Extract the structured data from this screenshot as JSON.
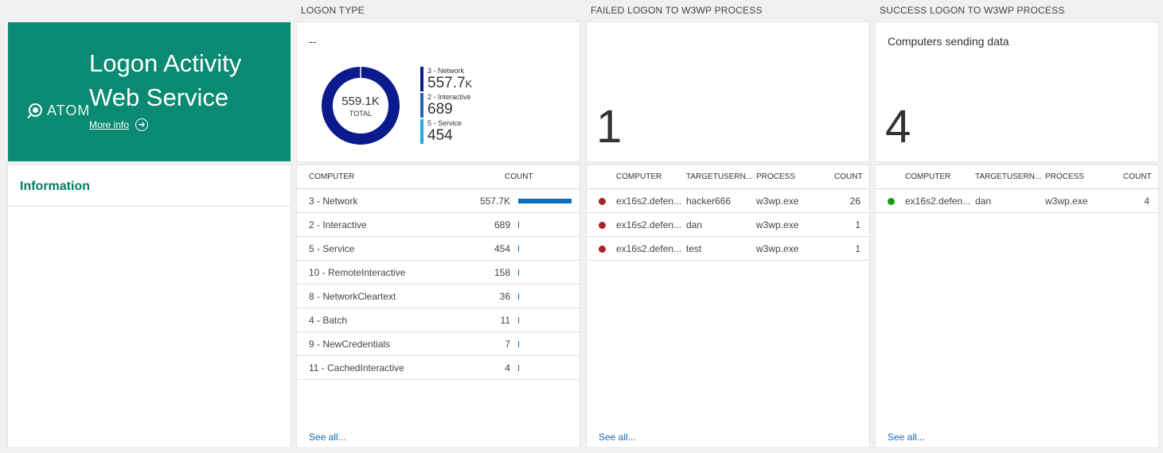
{
  "columns": {
    "logon_type": "LOGON TYPE",
    "failed": "FAILED LOGON TO W3WP PROCESS",
    "success": "SUCCESS LOGON TO W3WP PROCESS"
  },
  "hero": {
    "logo_text": "ATOM",
    "title_line1": "Logon Activity",
    "title_line2": "Web Service",
    "more_info": "More info",
    "bg_color": "#0a8a72"
  },
  "information": {
    "title": "Information"
  },
  "donut": {
    "subtitle": "--",
    "total": "559.1K",
    "total_label": "TOTAL",
    "legend": [
      {
        "label": "3 - Network",
        "value": "557.7",
        "unit": "K",
        "color": "#0b1a8c"
      },
      {
        "label": "2 - Interactive",
        "value": "689",
        "unit": "",
        "color": "#1f63b8"
      },
      {
        "label": "5 - Service",
        "value": "454",
        "unit": "",
        "color": "#2aa6d9"
      }
    ]
  },
  "logon_table": {
    "headers": [
      "COMPUTER",
      "COUNT"
    ],
    "rows": [
      {
        "name": "3 - Network",
        "count": "557.7K",
        "fraction": 1.0
      },
      {
        "name": "2 - Interactive",
        "count": "689",
        "fraction": 0.0012
      },
      {
        "name": "5 - Service",
        "count": "454",
        "fraction": 0.0008
      },
      {
        "name": "10 - RemoteInteractive",
        "count": "158",
        "fraction": 0.0003
      },
      {
        "name": "8 - NetworkCleartext",
        "count": "36",
        "fraction": 0.0001
      },
      {
        "name": "4 - Batch",
        "count": "11",
        "fraction": 0.0
      },
      {
        "name": "9 - NewCredentials",
        "count": "7",
        "fraction": 0.0
      },
      {
        "name": "11 - CachedInteractive",
        "count": "4",
        "fraction": 0.0
      }
    ],
    "see_all": "See all..."
  },
  "failed": {
    "big_number": "1",
    "headers": [
      "COMPUTER",
      "TARGETUSERN...",
      "PROCESS",
      "COUNT"
    ],
    "rows": [
      {
        "computer": "ex16s2.defen...",
        "user": "hacker666",
        "process": "w3wp.exe",
        "count": "26",
        "status_color": "#a4262c"
      },
      {
        "computer": "ex16s2.defen...",
        "user": "dan",
        "process": "w3wp.exe",
        "count": "1",
        "status_color": "#a4262c"
      },
      {
        "computer": "ex16s2.defen...",
        "user": "test",
        "process": "w3wp.exe",
        "count": "1",
        "status_color": "#a4262c"
      }
    ],
    "see_all": "See all..."
  },
  "success": {
    "subtitle": "Computers sending data",
    "big_number": "4",
    "headers": [
      "COMPUTER",
      "TARGETUSERN...",
      "PROCESS",
      "COUNT"
    ],
    "rows": [
      {
        "computer": "ex16s2.defen...",
        "user": "dan",
        "process": "w3wp.exe",
        "count": "4",
        "status_color": "#13a10e"
      }
    ],
    "see_all": "See all..."
  }
}
